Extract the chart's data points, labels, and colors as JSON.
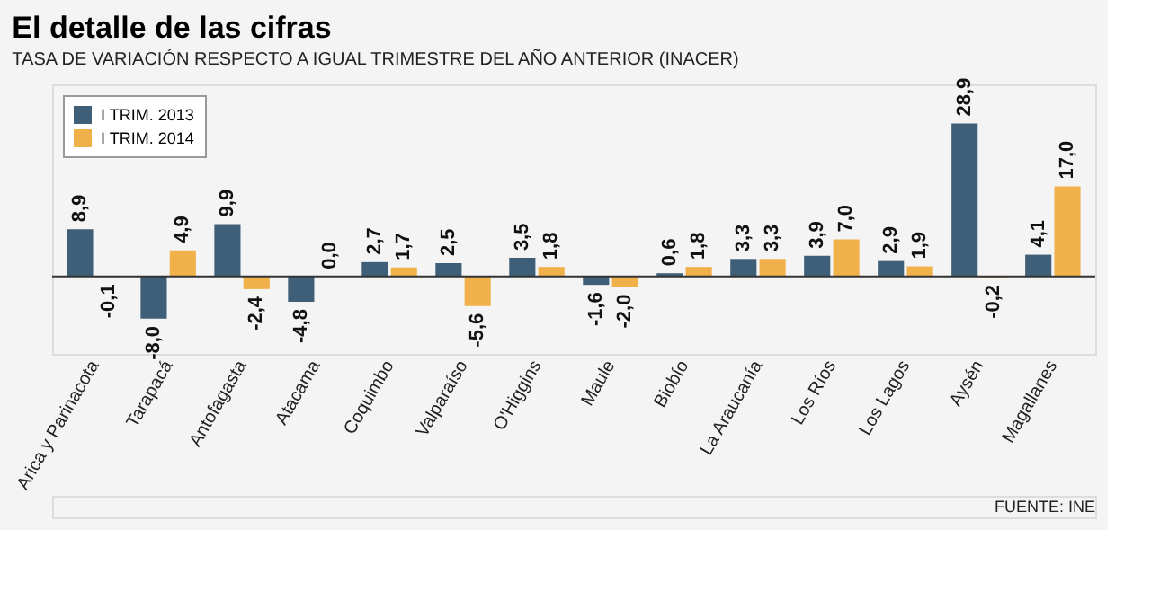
{
  "chart_data": {
    "type": "bar",
    "title": "El detalle de las cifras",
    "subtitle": "TASA DE VARIACIÓN RESPECTO A IGUAL TRIMESTRE DEL AÑO ANTERIOR (INACER)",
    "categories": [
      "Arica y Parinacota",
      "Tarapacá",
      "Antofagasta",
      "Atacama",
      "Coquimbo",
      "Valparaíso",
      "O'Higgins",
      "Maule",
      "Biobío",
      "La Araucanía",
      "Los Ríos",
      "Los Lagos",
      "Aysén",
      "Magallanes"
    ],
    "series": [
      {
        "name": "I TRIM. 2013",
        "color": "#3e5f77",
        "values": [
          8.9,
          -8.0,
          9.9,
          -4.8,
          2.7,
          2.5,
          3.5,
          -1.6,
          0.6,
          3.3,
          3.9,
          2.9,
          28.9,
          4.1
        ],
        "value_labels": [
          "8,9",
          "-8,0",
          "9,9",
          "-4,8",
          "2,7",
          "2,5",
          "3,5",
          "-1,6",
          "0,6",
          "3,3",
          "3,9",
          "2,9",
          "28,9",
          "4,1"
        ]
      },
      {
        "name": "I TRIM. 2014",
        "color": "#f0b04a",
        "values": [
          -0.1,
          4.9,
          -2.4,
          0.0,
          1.7,
          -5.6,
          1.8,
          -2.0,
          1.8,
          3.3,
          7.0,
          1.9,
          -0.2,
          17.0
        ],
        "value_labels": [
          "-0,1",
          "4,9",
          "-2,4",
          "0,0",
          "1,7",
          "-5,6",
          "1,8",
          "-2,0",
          "1,8",
          "3,3",
          "7,0",
          "1,9",
          "-0,2",
          "17,0"
        ]
      }
    ],
    "legend": "top left",
    "tick_labels": "x",
    "annotations": [
      "FUENTE: INE"
    ]
  }
}
